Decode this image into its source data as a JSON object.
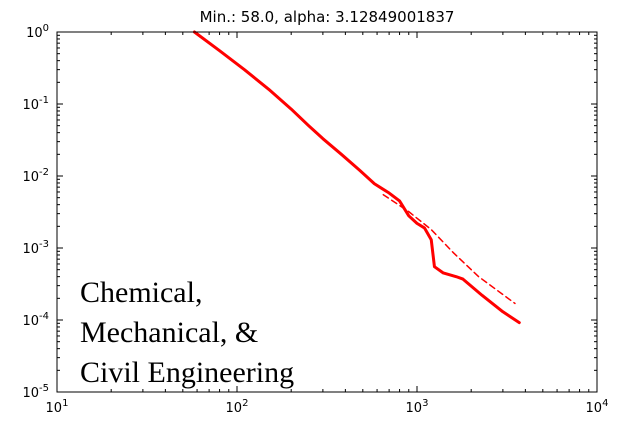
{
  "chart_data": {
    "type": "line",
    "title": "Min.: 58.0, alpha: 3.12849001837",
    "xscale": "log",
    "yscale": "log",
    "xlim": [
      10,
      10000
    ],
    "ylim": [
      1e-05,
      1
    ],
    "grid": false,
    "legend": "none",
    "x_ticks": [
      {
        "value": 10,
        "base": "10",
        "exp": "1"
      },
      {
        "value": 100,
        "base": "10",
        "exp": "2"
      },
      {
        "value": 1000,
        "base": "10",
        "exp": "3"
      },
      {
        "value": 10000,
        "base": "10",
        "exp": "4"
      }
    ],
    "y_ticks": [
      {
        "value": 1,
        "base": "10",
        "exp": "0"
      },
      {
        "value": 0.1,
        "base": "10",
        "exp": "-1"
      },
      {
        "value": 0.01,
        "base": "10",
        "exp": "-2"
      },
      {
        "value": 0.001,
        "base": "10",
        "exp": "-3"
      },
      {
        "value": 0.0001,
        "base": "10",
        "exp": "-4"
      },
      {
        "value": 1e-05,
        "base": "10",
        "exp": "-5"
      }
    ],
    "series": [
      {
        "style": "solid",
        "color": "#ff0000",
        "points": [
          [
            58,
            1.0
          ],
          [
            80,
            0.55
          ],
          [
            110,
            0.3
          ],
          [
            150,
            0.16
          ],
          [
            200,
            0.085
          ],
          [
            250,
            0.05
          ],
          [
            300,
            0.033
          ],
          [
            380,
            0.02
          ],
          [
            480,
            0.012
          ],
          [
            580,
            0.0078
          ],
          [
            700,
            0.0058
          ],
          [
            800,
            0.0045
          ],
          [
            900,
            0.0028
          ],
          [
            1000,
            0.0022
          ],
          [
            1100,
            0.0019
          ],
          [
            1200,
            0.0013
          ],
          [
            1250,
            0.00055
          ],
          [
            1400,
            0.00045
          ],
          [
            1650,
            0.0004
          ],
          [
            1800,
            0.00037
          ],
          [
            2300,
            0.00022
          ],
          [
            3000,
            0.00013
          ],
          [
            3700,
            9.2e-05
          ]
        ]
      },
      {
        "style": "dashed",
        "color": "#ff0000",
        "points": [
          [
            650,
            0.0055
          ],
          [
            900,
            0.0032
          ],
          [
            1200,
            0.0018
          ],
          [
            1600,
            0.00085
          ],
          [
            2200,
            0.0004
          ],
          [
            3500,
            0.00017
          ]
        ]
      }
    ],
    "annotation": {
      "lines": [
        "Chemical,",
        "Mechanical, &",
        "Civil Engineering"
      ]
    }
  },
  "colors": {
    "line": "#ff0000",
    "axes": "#000000",
    "background": "#ffffff"
  }
}
